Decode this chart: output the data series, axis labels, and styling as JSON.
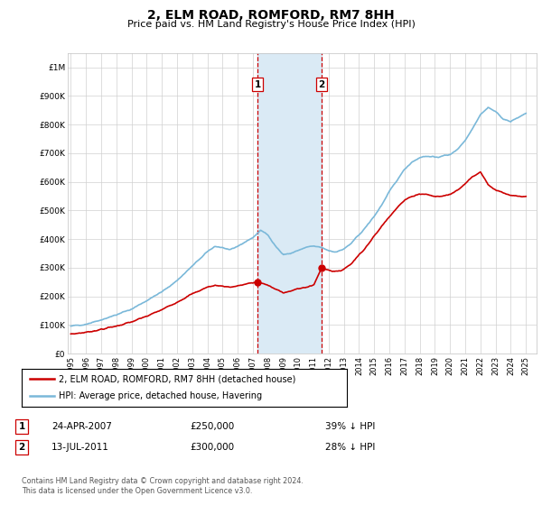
{
  "title": "2, ELM ROAD, ROMFORD, RM7 8HH",
  "subtitle": "Price paid vs. HM Land Registry's House Price Index (HPI)",
  "hpi_color": "#7ab8d9",
  "price_color": "#cc0000",
  "shade_color": "#daeaf5",
  "transaction1_date": "24-APR-2007",
  "transaction1_price": "£250,000",
  "transaction1_hpi": "39% ↓ HPI",
  "transaction1_x": 2007.3,
  "transaction1_y": 250000,
  "transaction2_date": "13-JUL-2011",
  "transaction2_price": "£300,000",
  "transaction2_hpi": "28% ↓ HPI",
  "transaction2_x": 2011.54,
  "transaction2_y": 300000,
  "legend_line1": "2, ELM ROAD, ROMFORD, RM7 8HH (detached house)",
  "legend_line2": "HPI: Average price, detached house, Havering",
  "footer": "Contains HM Land Registry data © Crown copyright and database right 2024.\nThis data is licensed under the Open Government Licence v3.0.",
  "xlim": [
    1994.8,
    2025.7
  ],
  "ylim": [
    0,
    1050000
  ],
  "yticks": [
    0,
    100000,
    200000,
    300000,
    400000,
    500000,
    600000,
    700000,
    800000,
    900000,
    1000000
  ],
  "ytick_labels": [
    "£0",
    "£100K",
    "£200K",
    "£300K",
    "£400K",
    "£500K",
    "£600K",
    "£700K",
    "£800K",
    "£900K",
    "£1M"
  ],
  "xticks": [
    1995,
    1996,
    1997,
    1998,
    1999,
    2000,
    2001,
    2002,
    2003,
    2004,
    2005,
    2006,
    2007,
    2008,
    2009,
    2010,
    2011,
    2012,
    2013,
    2014,
    2015,
    2016,
    2017,
    2018,
    2019,
    2020,
    2021,
    2022,
    2023,
    2024,
    2025
  ],
  "shade_x1": 2007.3,
  "shade_x2": 2011.54
}
